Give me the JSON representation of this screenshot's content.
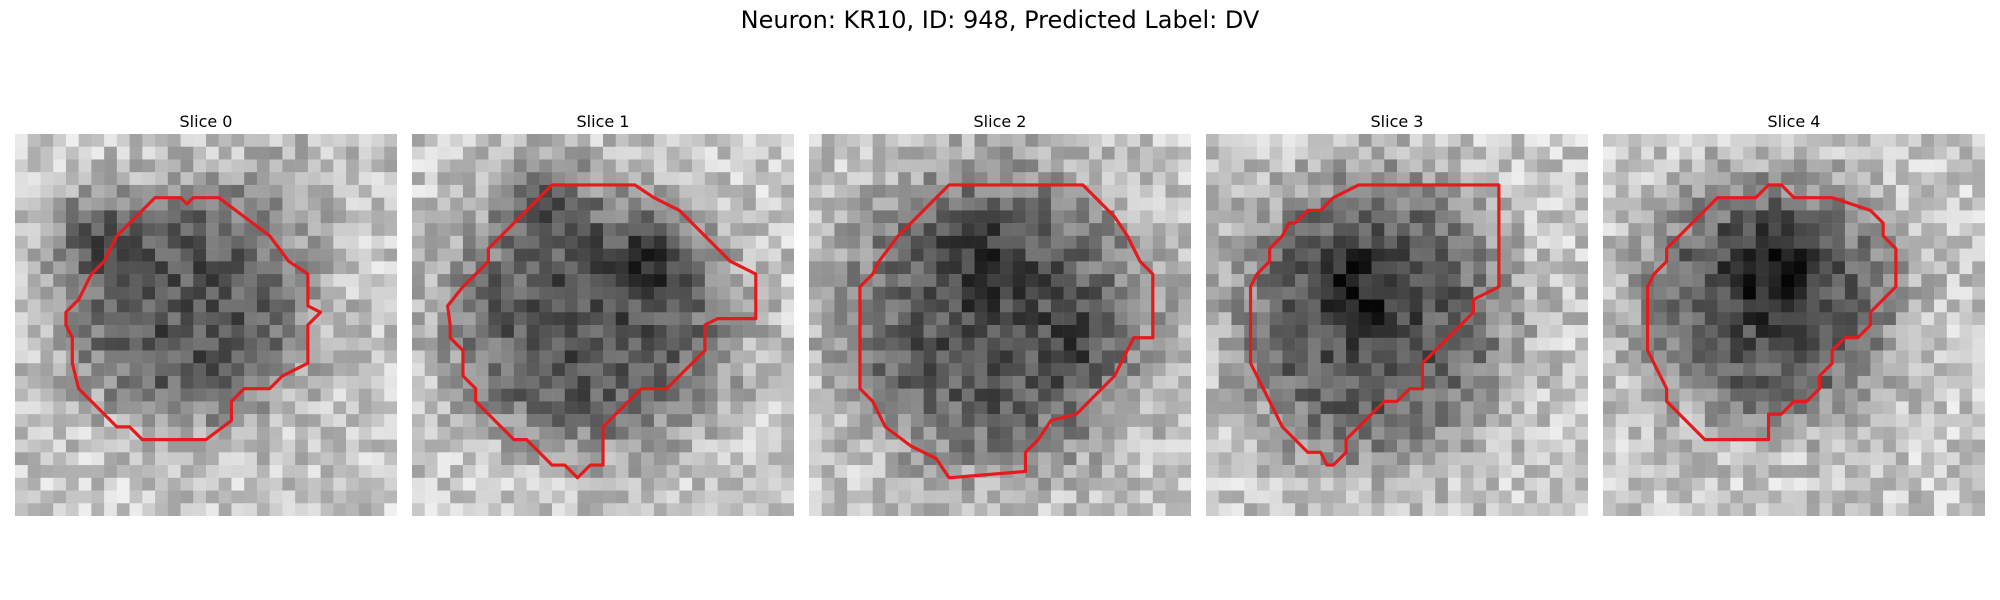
{
  "figure": {
    "title": "Neuron: KR10, ID: 948, Predicted Label: DV"
  },
  "panels": [
    {
      "label": "Slice 0"
    },
    {
      "label": "Slice 1"
    },
    {
      "label": "Slice 2"
    },
    {
      "label": "Slice 3"
    },
    {
      "label": "Slice 4"
    }
  ],
  "colors": {
    "contour": "#e41a1c",
    "background": "#ffffff"
  }
}
